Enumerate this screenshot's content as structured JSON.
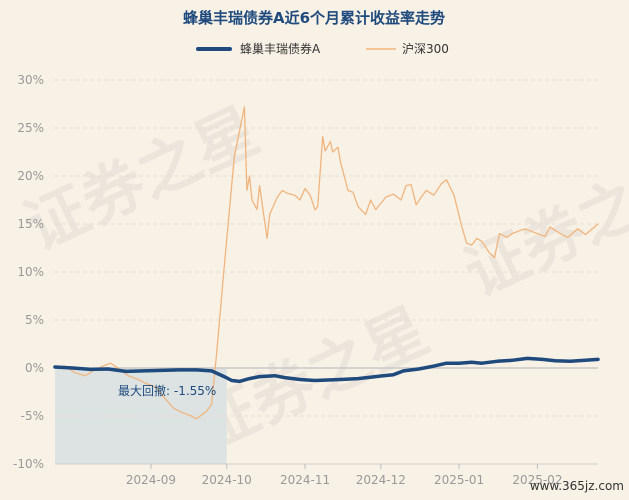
{
  "chart_data": {
    "type": "line",
    "title": "蜂巢丰瑞债券A近6个月累计收益率走势",
    "legend_position": "top",
    "y_unit": "%",
    "ylim": [
      -10,
      30
    ],
    "y_ticks": [
      -10,
      -5,
      0,
      5,
      10,
      15,
      20,
      25,
      30
    ],
    "y_tick_labels": [
      "-10%",
      "-5%",
      "0%",
      "5%",
      "10%",
      "15%",
      "20%",
      "25%",
      "30%"
    ],
    "x_range": [
      "2024-07-25",
      "2025-02-25"
    ],
    "x_ticks": [
      "2024-09-01",
      "2024-10-01",
      "2024-11-01",
      "2024-12-01",
      "2025-01-01",
      "2025-02-01"
    ],
    "x_tick_labels": [
      "2024-09",
      "2024-10",
      "2024-11",
      "2024-12",
      "2025-01",
      "2025-02"
    ],
    "grid": true,
    "max_drawdown": {
      "label": "最大回撤: -1.55%",
      "start": "2024-07-25",
      "end": "2024-10-01",
      "fill_color": "#dde3e3"
    },
    "series": [
      {
        "name": "蜂巢丰瑞债券A",
        "color": "#1e4a7d",
        "points": [
          [
            "2024-07-25",
            0.1
          ],
          [
            "2024-08-01",
            0.0
          ],
          [
            "2024-08-08",
            -0.15
          ],
          [
            "2024-08-15",
            -0.1
          ],
          [
            "2024-08-22",
            -0.35
          ],
          [
            "2024-08-29",
            -0.3
          ],
          [
            "2024-09-05",
            -0.25
          ],
          [
            "2024-09-12",
            -0.2
          ],
          [
            "2024-09-19",
            -0.2
          ],
          [
            "2024-09-25",
            -0.3
          ],
          [
            "2024-09-30",
            -0.9
          ],
          [
            "2024-10-03",
            -1.3
          ],
          [
            "2024-10-06",
            -1.4
          ],
          [
            "2024-10-10",
            -1.1
          ],
          [
            "2024-10-14",
            -0.9
          ],
          [
            "2024-10-20",
            -0.8
          ],
          [
            "2024-10-24",
            -1.0
          ],
          [
            "2024-10-30",
            -1.2
          ],
          [
            "2024-11-05",
            -1.3
          ],
          [
            "2024-11-15",
            -1.2
          ],
          [
            "2024-11-22",
            -1.1
          ],
          [
            "2024-11-29",
            -0.9
          ],
          [
            "2024-12-06",
            -0.7
          ],
          [
            "2024-12-10",
            -0.3
          ],
          [
            "2024-12-16",
            -0.1
          ],
          [
            "2024-12-22",
            0.2
          ],
          [
            "2024-12-27",
            0.5
          ],
          [
            "2025-01-01",
            0.5
          ],
          [
            "2025-01-06",
            0.6
          ],
          [
            "2025-01-10",
            0.5
          ],
          [
            "2025-01-16",
            0.7
          ],
          [
            "2025-01-22",
            0.8
          ],
          [
            "2025-01-28",
            1.0
          ],
          [
            "2025-02-03",
            0.9
          ],
          [
            "2025-02-08",
            0.75
          ],
          [
            "2025-02-14",
            0.7
          ],
          [
            "2025-02-20",
            0.8
          ],
          [
            "2025-02-25",
            0.9
          ]
        ]
      },
      {
        "name": "沪深300",
        "color": "#f0b57e",
        "points": [
          [
            "2024-07-25",
            0.1
          ],
          [
            "2024-07-29",
            0.2
          ],
          [
            "2024-08-02",
            -0.5
          ],
          [
            "2024-08-06",
            -0.8
          ],
          [
            "2024-08-09",
            -0.3
          ],
          [
            "2024-08-13",
            0.2
          ],
          [
            "2024-08-16",
            0.5
          ],
          [
            "2024-08-20",
            -0.2
          ],
          [
            "2024-08-23",
            -0.8
          ],
          [
            "2024-08-27",
            -1.2
          ],
          [
            "2024-08-30",
            -1.6
          ],
          [
            "2024-09-03",
            -2.0
          ],
          [
            "2024-09-06",
            -3.0
          ],
          [
            "2024-09-10",
            -4.2
          ],
          [
            "2024-09-13",
            -4.6
          ],
          [
            "2024-09-17",
            -5.0
          ],
          [
            "2024-09-19",
            -5.3
          ],
          [
            "2024-09-23",
            -4.5
          ],
          [
            "2024-09-25",
            -3.8
          ],
          [
            "2024-09-27",
            1.5
          ],
          [
            "2024-09-30",
            10.5
          ],
          [
            "2024-10-04",
            22.0
          ],
          [
            "2024-10-08",
            27.2
          ],
          [
            "2024-10-09",
            18.5
          ],
          [
            "2024-10-10",
            20.0
          ],
          [
            "2024-10-11",
            17.5
          ],
          [
            "2024-10-13",
            16.5
          ],
          [
            "2024-10-14",
            19.0
          ],
          [
            "2024-10-16",
            15.3
          ],
          [
            "2024-10-17",
            13.5
          ],
          [
            "2024-10-18",
            16.0
          ],
          [
            "2024-10-21",
            17.8
          ],
          [
            "2024-10-23",
            18.5
          ],
          [
            "2024-10-25",
            18.2
          ],
          [
            "2024-10-28",
            18.0
          ],
          [
            "2024-10-30",
            17.5
          ],
          [
            "2024-11-01",
            18.7
          ],
          [
            "2024-11-03",
            18.0
          ],
          [
            "2024-11-05",
            16.5
          ],
          [
            "2024-11-06",
            16.8
          ],
          [
            "2024-11-08",
            24.1
          ],
          [
            "2024-11-09",
            22.6
          ],
          [
            "2024-11-11",
            23.6
          ],
          [
            "2024-11-12",
            22.5
          ],
          [
            "2024-11-14",
            23.0
          ],
          [
            "2024-11-15",
            21.5
          ],
          [
            "2024-11-18",
            18.5
          ],
          [
            "2024-11-20",
            18.3
          ],
          [
            "2024-11-22",
            16.8
          ],
          [
            "2024-11-25",
            16.0
          ],
          [
            "2024-11-27",
            17.5
          ],
          [
            "2024-11-29",
            16.5
          ],
          [
            "2024-12-03",
            17.8
          ],
          [
            "2024-12-06",
            18.1
          ],
          [
            "2024-12-09",
            17.5
          ],
          [
            "2024-12-11",
            19.0
          ],
          [
            "2024-12-13",
            19.1
          ],
          [
            "2024-12-15",
            17.0
          ],
          [
            "2024-12-17",
            17.8
          ],
          [
            "2024-12-19",
            18.5
          ],
          [
            "2024-12-22",
            18.0
          ],
          [
            "2024-12-25",
            19.2
          ],
          [
            "2024-12-27",
            19.6
          ],
          [
            "2024-12-30",
            18.0
          ],
          [
            "2025-01-02",
            14.8
          ],
          [
            "2025-01-04",
            13.0
          ],
          [
            "2025-01-06",
            12.8
          ],
          [
            "2025-01-08",
            13.5
          ],
          [
            "2025-01-10",
            13.2
          ],
          [
            "2025-01-13",
            12.0
          ],
          [
            "2025-01-15",
            11.5
          ],
          [
            "2025-01-17",
            14.0
          ],
          [
            "2025-01-20",
            13.6
          ],
          [
            "2025-01-22",
            14.0
          ],
          [
            "2025-01-24",
            14.2
          ],
          [
            "2025-01-27",
            14.5
          ],
          [
            "2025-02-04",
            13.7
          ],
          [
            "2025-02-06",
            14.7
          ],
          [
            "2025-02-10",
            14.0
          ],
          [
            "2025-02-13",
            13.6
          ],
          [
            "2025-02-17",
            14.5
          ],
          [
            "2025-02-20",
            13.9
          ],
          [
            "2025-02-25",
            15.0
          ]
        ]
      }
    ]
  },
  "footer": {
    "watermark_text": "证券之星",
    "site_text": "www.365jz.com"
  }
}
